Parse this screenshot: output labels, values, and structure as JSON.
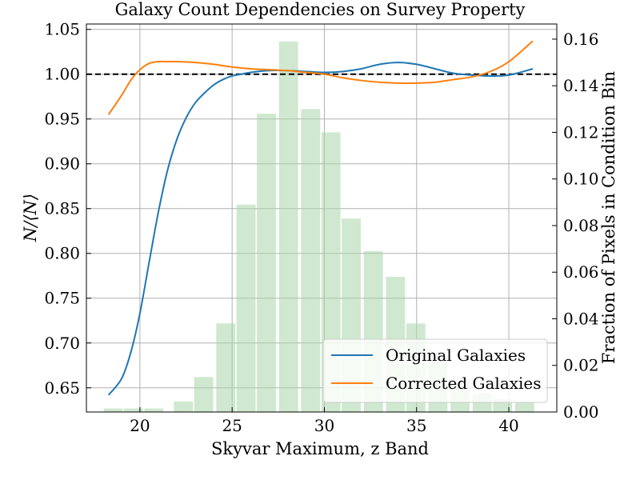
{
  "chart_data": {
    "type": "line",
    "title": "Galaxy Count Dependencies on Survey Property",
    "xlabel": "Skyvar Maximum, z Band",
    "ylabel": "N/⟨N⟩",
    "y2label": "Fraction of Pixels in Condition Bin",
    "xlim": [
      17.1,
      42.6
    ],
    "ylim": [
      0.623,
      1.056
    ],
    "y2lim": [
      0.0,
      0.1665
    ],
    "xticks": [
      "20",
      "25",
      "30",
      "35",
      "40"
    ],
    "yticks": [
      "0.65",
      "0.70",
      "0.75",
      "0.80",
      "0.85",
      "0.90",
      "0.95",
      "1.00",
      "1.05"
    ],
    "y2ticks": [
      "0.00",
      "0.02",
      "0.04",
      "0.06",
      "0.08",
      "0.10",
      "0.12",
      "0.14",
      "0.16"
    ],
    "grid": true,
    "reference_line": {
      "y": 1.0,
      "style": "dashed",
      "color": "#000000"
    },
    "legend": {
      "placement": "lower-right",
      "entries": [
        {
          "label": "Original Galaxies",
          "color": "#1f77b4"
        },
        {
          "label": "Corrected Galaxies",
          "color": "#ff7f0e"
        }
      ]
    },
    "series": [
      {
        "name": "Original Galaxies",
        "color": "#1f77b4",
        "x": [
          18.3,
          19.0,
          19.5,
          20.0,
          20.5,
          21.0,
          21.5,
          22.0,
          22.5,
          23.0,
          23.5,
          24.0,
          24.5,
          25.0,
          25.5,
          26.0,
          27.0,
          28.0,
          29.0,
          30.0,
          31.0,
          32.0,
          33.0,
          34.0,
          35.0,
          36.0,
          37.0,
          38.0,
          39.0,
          40.0,
          41.3
        ],
        "values": [
          0.642,
          0.66,
          0.689,
          0.733,
          0.79,
          0.846,
          0.893,
          0.927,
          0.951,
          0.968,
          0.979,
          0.988,
          0.994,
          0.998,
          1.0,
          1.002,
          1.004,
          1.004,
          1.003,
          1.002,
          1.003,
          1.006,
          1.011,
          1.013,
          1.011,
          1.006,
          1.001,
          0.999,
          0.998,
          0.999,
          1.006
        ]
      },
      {
        "name": "Corrected Galaxies",
        "color": "#ff7f0e",
        "x": [
          18.3,
          19.0,
          19.5,
          20.0,
          20.5,
          21.0,
          21.5,
          22.0,
          23.0,
          24.0,
          25.0,
          26.0,
          27.0,
          28.0,
          29.0,
          30.0,
          31.0,
          32.0,
          33.0,
          34.0,
          35.0,
          36.0,
          37.0,
          38.0,
          39.0,
          40.0,
          41.3
        ],
        "values": [
          0.955,
          0.976,
          0.993,
          1.005,
          1.012,
          1.014,
          1.014,
          1.014,
          1.013,
          1.011,
          1.008,
          1.006,
          1.005,
          1.004,
          1.002,
          1.0,
          0.996,
          0.993,
          0.991,
          0.99,
          0.99,
          0.991,
          0.994,
          0.997,
          1.003,
          1.014,
          1.037
        ]
      }
    ],
    "histogram": {
      "color": "#a8d5a8",
      "axis": "right",
      "bin_centers": [
        18.6,
        19.7,
        20.8,
        22.4,
        23.5,
        24.7,
        25.8,
        26.9,
        28.1,
        29.3,
        30.4,
        31.5,
        32.7,
        33.9,
        35.0,
        36.2,
        37.4,
        38.6,
        39.7,
        40.9
      ],
      "bin_width": 1.12,
      "values": [
        0.0015,
        0.0015,
        0.0015,
        0.0045,
        0.015,
        0.038,
        0.089,
        0.128,
        0.159,
        0.13,
        0.12,
        0.083,
        0.069,
        0.058,
        0.038,
        0.022,
        0.014,
        0.008,
        0.0055,
        0.004
      ]
    }
  }
}
